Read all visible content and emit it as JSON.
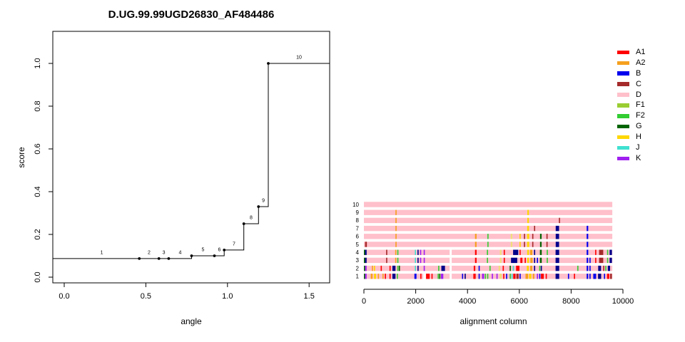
{
  "figure": {
    "background": "#ffffff",
    "text_color": "#000000"
  },
  "palette": {
    "red": "#FF0000",
    "orange": "#F5A01E",
    "blue": "#0000EE",
    "navy": "#00008B",
    "brown": "#A52A2A",
    "pink": "#FFC0CB",
    "yellowgreen": "#9ACD32",
    "limegreen": "#32CD32",
    "darkgreen": "#006400",
    "gold": "#FFD700",
    "khaki": "#F0DE7A",
    "turquoise": "#40E0D0",
    "purple": "#A020F0",
    "white": "#FFFFFF",
    "black": "#000000"
  },
  "chart_data": [
    {
      "type": "line",
      "subtype": "step",
      "title": "D.UG.99.99UGD26830_AF484486",
      "xlabel": "angle",
      "ylabel": "score",
      "xlim": [
        -0.07,
        1.63
      ],
      "ylim": [
        -0.04,
        1.08
      ],
      "xticks": [
        0.0,
        0.5,
        1.0,
        1.5
      ],
      "xtick_labels": [
        "0.0",
        "0.5",
        "1.0",
        "1.5"
      ],
      "yticks": [
        0.0,
        0.2,
        0.4,
        0.6,
        0.8,
        1.0
      ],
      "ytick_labels": [
        "0.0",
        "0.2",
        "0.4",
        "0.6",
        "0.8",
        "1.0"
      ],
      "grid": false,
      "line_color": "black",
      "points": [
        {
          "label": "1",
          "x": 0.0,
          "y": 0.087,
          "dot": false
        },
        {
          "label": "2",
          "x": 0.46,
          "y": 0.087,
          "dot": true
        },
        {
          "label": "3",
          "x": 0.58,
          "y": 0.087,
          "dot": true
        },
        {
          "label": "4",
          "x": 0.64,
          "y": 0.087,
          "dot": true
        },
        {
          "label": "5",
          "x": 0.78,
          "y": 0.1,
          "dot": true
        },
        {
          "label": "6",
          "x": 0.92,
          "y": 0.1,
          "dot": true
        },
        {
          "label": "7",
          "x": 0.98,
          "y": 0.127,
          "dot": true
        },
        {
          "label": "8",
          "x": 1.1,
          "y": 0.25,
          "dot": true
        },
        {
          "label": "9",
          "x": 1.19,
          "y": 0.33,
          "dot": true
        },
        {
          "label": "10",
          "x": 1.25,
          "y": 1.0,
          "dot": true
        }
      ]
    },
    {
      "type": "heatmap",
      "subtype": "subtype-stripe-rows",
      "xlabel": "alignment column",
      "ylabel": "",
      "xlim": [
        0,
        10000
      ],
      "xticks": [
        0,
        2000,
        4000,
        6000,
        8000,
        10000
      ],
      "xtick_labels": [
        "0",
        "2000",
        "4000",
        "6000",
        "8000",
        "10000"
      ],
      "bar_color": "pink",
      "bar_span": [
        0,
        9590
      ],
      "row_labels": [
        "1",
        "2",
        "3",
        "4",
        "5",
        "6",
        "7",
        "8",
        "9",
        "10"
      ],
      "legend": {
        "position": "top-right",
        "items": [
          {
            "label": "A1",
            "color": "red"
          },
          {
            "label": "A2",
            "color": "orange"
          },
          {
            "label": "B",
            "color": "blue"
          },
          {
            "label": "C",
            "color": "brown"
          },
          {
            "label": "D",
            "color": "pink"
          },
          {
            "label": "F1",
            "color": "yellowgreen"
          },
          {
            "label": "F2",
            "color": "limegreen"
          },
          {
            "label": "G",
            "color": "darkgreen"
          },
          {
            "label": "H",
            "color": "gold"
          },
          {
            "label": "J",
            "color": "turquoise"
          },
          {
            "label": "K",
            "color": "purple"
          }
        ]
      },
      "rows": [
        {
          "row": 10,
          "stripes": []
        },
        {
          "row": 9,
          "stripes": [
            [
              1240,
              "orange"
            ],
            [
              6340,
              "gold",
              60
            ]
          ]
        },
        {
          "row": 8,
          "stripes": [
            [
              1240,
              "orange"
            ],
            [
              6340,
              "gold",
              60
            ],
            [
              7550,
              "brown"
            ]
          ]
        },
        {
          "row": 7,
          "stripes": [
            [
              1240,
              "orange"
            ],
            [
              6340,
              "gold",
              70
            ],
            [
              6590,
              "brown"
            ],
            [
              7470,
              "navy",
              130
            ],
            [
              8630,
              "blue",
              60
            ]
          ]
        },
        {
          "row": 6,
          "stripes": [
            [
              1240,
              "orange"
            ],
            [
              4320,
              "orange",
              60
            ],
            [
              4790,
              "limegreen"
            ],
            [
              5700,
              "khaki",
              60
            ],
            [
              6030,
              "gold"
            ],
            [
              6200,
              "brown"
            ],
            [
              6340,
              "gold",
              80
            ],
            [
              6520,
              "brown"
            ],
            [
              6830,
              "darkgreen",
              60
            ],
            [
              7070,
              "brown"
            ],
            [
              7470,
              "navy",
              130
            ],
            [
              8630,
              "blue",
              60
            ]
          ]
        },
        {
          "row": 5,
          "stripes": [
            [
              80,
              "brown",
              70
            ],
            [
              1240,
              "orange"
            ],
            [
              4320,
              "orange",
              60
            ],
            [
              4790,
              "limegreen"
            ],
            [
              5700,
              "khaki",
              60
            ],
            [
              6030,
              "gold"
            ],
            [
              6200,
              "brown"
            ],
            [
              6340,
              "gold",
              80
            ],
            [
              6520,
              "brown"
            ],
            [
              6830,
              "darkgreen",
              60
            ],
            [
              7070,
              "brown"
            ],
            [
              7470,
              "navy",
              130
            ],
            [
              8630,
              "blue",
              60
            ]
          ]
        },
        {
          "row": 4,
          "stripes": [
            [
              20,
              "darkgreen"
            ],
            [
              75,
              "navy",
              60
            ],
            [
              880,
              "brown"
            ],
            [
              1230,
              "orange"
            ],
            [
              1310,
              "limegreen"
            ],
            [
              1990,
              "turquoise"
            ],
            [
              2090,
              "navy"
            ],
            [
              2190,
              "purple"
            ],
            [
              2330,
              "purple"
            ],
            [
              3350,
              "white",
              80
            ],
            [
              4320,
              "red",
              60
            ],
            [
              4770,
              "limegreen"
            ],
            [
              5280,
              "khaki",
              60
            ],
            [
              5420,
              "red"
            ],
            [
              5860,
              "navy",
              200
            ],
            [
              6030,
              "red"
            ],
            [
              6340,
              "gold",
              70
            ],
            [
              6460,
              "orange",
              90
            ],
            [
              6590,
              "navy"
            ],
            [
              6830,
              "darkgreen",
              70
            ],
            [
              7080,
              "limegreen"
            ],
            [
              7470,
              "navy",
              140
            ],
            [
              8630,
              "blue",
              60
            ],
            [
              8950,
              "red"
            ],
            [
              9160,
              "brown",
              160
            ],
            [
              9410,
              "limegreen"
            ],
            [
              9530,
              "navy",
              90
            ]
          ]
        },
        {
          "row": 3,
          "stripes": [
            [
              20,
              "darkgreen"
            ],
            [
              75,
              "navy",
              60
            ],
            [
              880,
              "brown"
            ],
            [
              1230,
              "orange"
            ],
            [
              1310,
              "limegreen"
            ],
            [
              1990,
              "turquoise"
            ],
            [
              2090,
              "navy"
            ],
            [
              2190,
              "purple"
            ],
            [
              2330,
              "purple"
            ],
            [
              3350,
              "white",
              80
            ],
            [
              4320,
              "red",
              60
            ],
            [
              4770,
              "limegreen"
            ],
            [
              5280,
              "khaki",
              60
            ],
            [
              5420,
              "red"
            ],
            [
              5800,
              "navy",
              240
            ],
            [
              6080,
              "red",
              80
            ],
            [
              6230,
              "red"
            ],
            [
              6340,
              "gold",
              70
            ],
            [
              6470,
              "orange",
              90
            ],
            [
              6590,
              "navy"
            ],
            [
              6700,
              "blue"
            ],
            [
              6830,
              "darkgreen",
              70
            ],
            [
              7080,
              "limegreen"
            ],
            [
              7470,
              "navy",
              140
            ],
            [
              8630,
              "blue",
              60
            ],
            [
              8730,
              "blue"
            ],
            [
              8950,
              "red"
            ],
            [
              9160,
              "brown",
              160
            ],
            [
              9410,
              "limegreen"
            ],
            [
              9530,
              "navy",
              90
            ]
          ]
        },
        {
          "row": 2,
          "stripes": [
            [
              20,
              "darkgreen"
            ],
            [
              75,
              "purple",
              60
            ],
            [
              330,
              "orange"
            ],
            [
              410,
              "gold"
            ],
            [
              670,
              "red"
            ],
            [
              1010,
              "red"
            ],
            [
              1160,
              "navy",
              120
            ],
            [
              1310,
              "limegreen"
            ],
            [
              1370,
              "darkgreen"
            ],
            [
              1990,
              "turquoise"
            ],
            [
              2090,
              "navy"
            ],
            [
              2330,
              "purple"
            ],
            [
              2890,
              "limegreen"
            ],
            [
              3060,
              "navy",
              140
            ],
            [
              3350,
              "white",
              80
            ],
            [
              4270,
              "red",
              60
            ],
            [
              4450,
              "blue"
            ],
            [
              4870,
              "limegreen"
            ],
            [
              5230,
              "khaki",
              60
            ],
            [
              5380,
              "red"
            ],
            [
              5650,
              "darkgreen"
            ],
            [
              5770,
              "turquoise"
            ],
            [
              5940,
              "red",
              130
            ],
            [
              6330,
              "gold",
              80
            ],
            [
              6460,
              "orange",
              80
            ],
            [
              6590,
              "navy"
            ],
            [
              6790,
              "limegreen"
            ],
            [
              6850,
              "navy"
            ],
            [
              7470,
              "navy",
              140
            ],
            [
              8260,
              "limegreen"
            ],
            [
              8630,
              "blue",
              60
            ],
            [
              8730,
              "blue"
            ],
            [
              9100,
              "navy",
              110
            ],
            [
              9260,
              "brown"
            ],
            [
              9340,
              "limegreen"
            ],
            [
              9460,
              "navy",
              90
            ]
          ]
        },
        {
          "row": 1,
          "stripes": [
            [
              20,
              "darkgreen"
            ],
            [
              75,
              "purple",
              60
            ],
            [
              300,
              "orange",
              70
            ],
            [
              430,
              "gold",
              80
            ],
            [
              560,
              "orange"
            ],
            [
              740,
              "orange"
            ],
            [
              830,
              "red"
            ],
            [
              1010,
              "red"
            ],
            [
              1160,
              "navy",
              120
            ],
            [
              1290,
              "limegreen"
            ],
            [
              1990,
              "blue",
              80
            ],
            [
              2200,
              "red"
            ],
            [
              2340,
              "white",
              100
            ],
            [
              2470,
              "red",
              140
            ],
            [
              2630,
              "red"
            ],
            [
              2870,
              "limegreen"
            ],
            [
              2930,
              "darkgreen"
            ],
            [
              3020,
              "purple",
              90
            ],
            [
              3350,
              "white",
              80
            ],
            [
              3810,
              "blue"
            ],
            [
              3910,
              "navy"
            ],
            [
              4270,
              "red",
              90
            ],
            [
              4450,
              "blue"
            ],
            [
              4600,
              "purple",
              80
            ],
            [
              4690,
              "limegreen"
            ],
            [
              4780,
              "limegreen"
            ],
            [
              4960,
              "purple"
            ],
            [
              5140,
              "purple"
            ],
            [
              5280,
              "khaki",
              80
            ],
            [
              5400,
              "red"
            ],
            [
              5510,
              "blue"
            ],
            [
              5650,
              "limegreen"
            ],
            [
              5720,
              "turquoise"
            ],
            [
              5810,
              "red",
              90
            ],
            [
              5930,
              "brown",
              90
            ],
            [
              6030,
              "blue"
            ],
            [
              6290,
              "orange",
              100
            ],
            [
              6420,
              "gold",
              90
            ],
            [
              6550,
              "orange",
              60
            ],
            [
              6700,
              "purple"
            ],
            [
              6790,
              "blue"
            ],
            [
              6890,
              "red",
              110
            ],
            [
              7040,
              "red"
            ],
            [
              7470,
              "navy",
              140
            ],
            [
              7900,
              "blue"
            ],
            [
              8130,
              "red"
            ],
            [
              8630,
              "blue",
              60
            ],
            [
              8730,
              "blue"
            ],
            [
              8910,
              "blue",
              110
            ],
            [
              9100,
              "navy",
              120
            ],
            [
              9290,
              "blue"
            ],
            [
              9430,
              "red",
              90
            ],
            [
              9540,
              "brown",
              70
            ]
          ]
        }
      ]
    }
  ]
}
